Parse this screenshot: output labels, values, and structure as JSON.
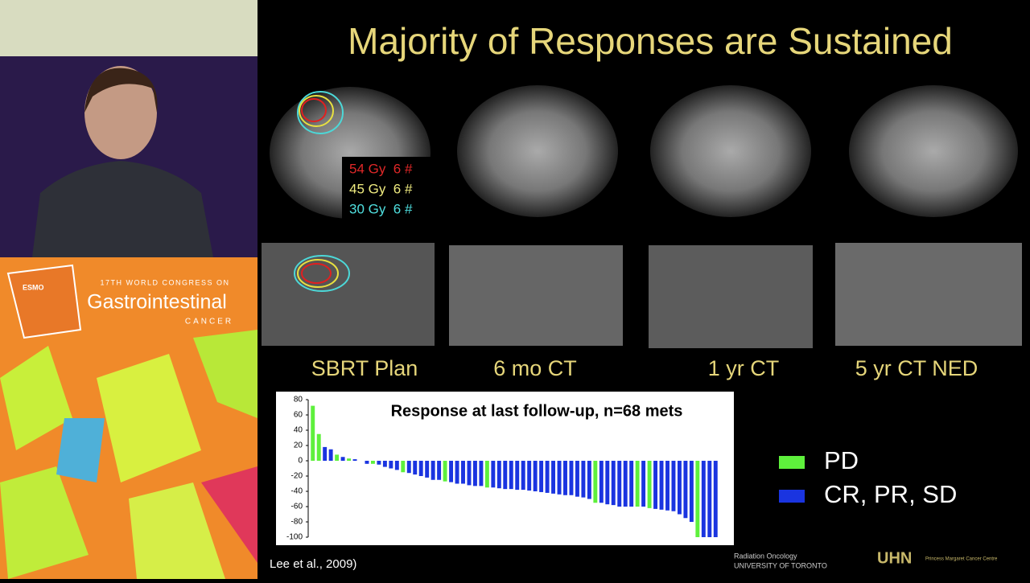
{
  "banner": {
    "society": "ESMO",
    "congress": "17TH WORLD CONGRESS ON",
    "name": "Gastrointestinal",
    "subtitle": "CANCER"
  },
  "slide": {
    "title": "Majority of Responses are Sustained",
    "image_labels": [
      "SBRT Plan",
      "6 mo CT",
      "1 yr CT",
      "5 yr CT NED"
    ],
    "dose_legend": [
      "54 Gy  6 #",
      "45 Gy  6 #",
      "30 Gy  6 #"
    ],
    "citation": "Lee et al., 2009)",
    "logos": [
      "Radiation Oncology",
      "UNIVERSITY OF TORONTO",
      "UHN",
      "Princess Margaret Cancer Centre"
    ]
  },
  "chart_data": {
    "type": "bar",
    "title": "Response at last follow-up, n=68 mets",
    "ylim": [
      -100,
      80
    ],
    "yticks": [
      80,
      60,
      40,
      20,
      0,
      -20,
      -40,
      -60,
      -80,
      -100
    ],
    "series": [
      {
        "name": "PD",
        "color": "#5ef03c",
        "values": [
          72,
          35,
          null,
          null,
          8,
          null,
          3,
          null,
          null,
          null,
          -4,
          null,
          null,
          null,
          null,
          -15,
          null,
          null,
          null,
          null,
          null,
          null,
          -27,
          null,
          null,
          null,
          null,
          null,
          null,
          -35,
          null,
          null,
          null,
          null,
          null,
          null,
          null,
          null,
          null,
          null,
          null,
          null,
          null,
          null,
          null,
          null,
          null,
          -55,
          null,
          null,
          null,
          null,
          null,
          null,
          -60,
          null,
          -62,
          null,
          null,
          null,
          null,
          null,
          null,
          null,
          -100,
          null,
          null,
          null
        ]
      },
      {
        "name": "CR, PR, SD",
        "color": "#1a34e0",
        "values": [
          null,
          null,
          18,
          15,
          null,
          5,
          null,
          2,
          0,
          -4,
          null,
          -5,
          -8,
          -10,
          -12,
          null,
          -16,
          -18,
          -20,
          -22,
          -25,
          -25,
          null,
          -28,
          -30,
          -30,
          -32,
          -33,
          -33,
          null,
          -35,
          -36,
          -37,
          -37,
          -38,
          -38,
          -39,
          -40,
          -41,
          -42,
          -43,
          -44,
          -45,
          -45,
          -47,
          -48,
          -50,
          null,
          -55,
          -57,
          -58,
          -60,
          -60,
          -60,
          null,
          -60,
          null,
          -63,
          -64,
          -65,
          -66,
          -70,
          -75,
          -80,
          null,
          -100,
          -100,
          -100
        ]
      }
    ]
  }
}
